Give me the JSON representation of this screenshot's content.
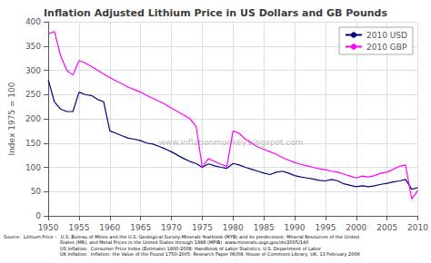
{
  "chart_data": {
    "type": "line",
    "title": "Inflation Adjusted Lithium Price in US Dollars and GB Pounds",
    "y_label": "Index 1975 = 100",
    "x": [
      1950,
      1951,
      1952,
      1953,
      1954,
      1955,
      1956,
      1957,
      1958,
      1959,
      1960,
      1961,
      1962,
      1963,
      1964,
      1965,
      1966,
      1967,
      1968,
      1969,
      1970,
      1971,
      1972,
      1973,
      1974,
      1975,
      1976,
      1977,
      1978,
      1979,
      1980,
      1981,
      1982,
      1983,
      1984,
      1985,
      1986,
      1987,
      1988,
      1989,
      1990,
      1991,
      1992,
      1993,
      1994,
      1995,
      1996,
      1997,
      1998,
      1999,
      2000,
      2001,
      2002,
      2003,
      2004,
      2005,
      2006,
      2007,
      2008,
      2009,
      2010
    ],
    "series": [
      {
        "name": "2010 USD",
        "color": "#000080",
        "values": [
          280,
          235,
          220,
          215,
          215,
          255,
          250,
          248,
          240,
          235,
          175,
          170,
          165,
          160,
          158,
          155,
          150,
          148,
          143,
          138,
          132,
          125,
          118,
          112,
          108,
          100,
          107,
          103,
          100,
          98,
          108,
          105,
          100,
          96,
          92,
          88,
          85,
          90,
          92,
          88,
          83,
          80,
          78,
          76,
          73,
          72,
          75,
          72,
          66,
          63,
          60,
          62,
          60,
          62,
          65,
          67,
          70,
          72,
          75,
          55,
          58
        ]
      },
      {
        "name": "2010 GBP",
        "color": "#ff00ff",
        "values": [
          375,
          380,
          330,
          300,
          290,
          320,
          315,
          308,
          300,
          292,
          285,
          278,
          272,
          265,
          260,
          255,
          248,
          242,
          236,
          230,
          222,
          215,
          208,
          200,
          185,
          100,
          118,
          112,
          106,
          102,
          175,
          170,
          158,
          150,
          142,
          137,
          132,
          127,
          120,
          115,
          110,
          106,
          103,
          100,
          97,
          95,
          92,
          90,
          86,
          82,
          78,
          82,
          80,
          83,
          88,
          90,
          96,
          102,
          105,
          35,
          52
        ]
      }
    ],
    "xlim": [
      1950,
      2010
    ],
    "ylim": [
      0,
      400
    ],
    "xticks": [
      1950,
      1955,
      1960,
      1965,
      1970,
      1975,
      1980,
      1985,
      1990,
      1995,
      2000,
      2005,
      2010
    ],
    "yticks": [
      0,
      50,
      100,
      150,
      200,
      250,
      300,
      350,
      400
    ],
    "grid": true,
    "legend": "upper right",
    "annotations": [
      "www.inflationmonkey.blogspot.com"
    ],
    "source": [
      "Source:  Lithium Price -   U.S. Bureau of Mines and the U.S. Geological Survey-Minerals Yearbook (MYB) and its predecessor, Mineral Resources of the United",
      "States (MR), and Metal Prices in the United States through 1998 (MPIB)  www.minerals.usgs.gov/ds/2005/140",
      "US Inflation:  Consumer Price Index (Estimate) 1800-2008: Handbook of Labor Statistics, U.S. Department of Labor",
      "UK Inflation:  Inflation: the Value of the Pound 1750-2005: Research Paper 06/09, House of Commons Library, UK. 13 February 2006"
    ]
  }
}
